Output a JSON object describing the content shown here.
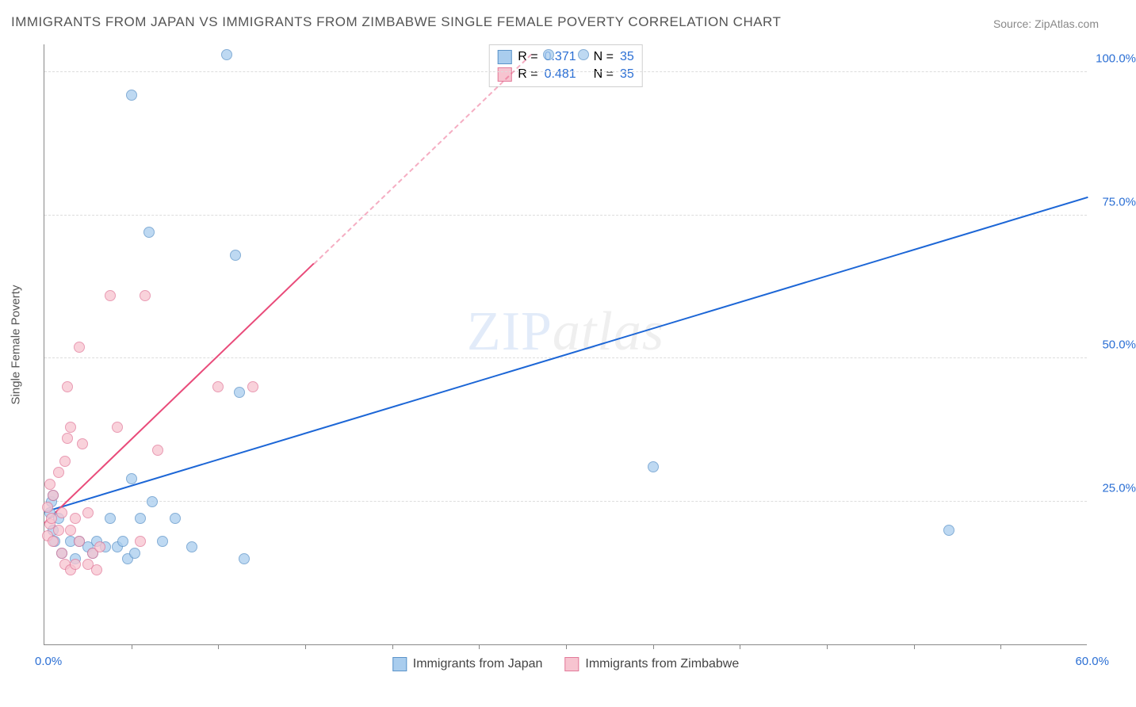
{
  "title": "IMMIGRANTS FROM JAPAN VS IMMIGRANTS FROM ZIMBABWE SINGLE FEMALE POVERTY CORRELATION CHART",
  "source_label": "Source: ZipAtlas.com",
  "y_axis_title": "Single Female Poverty",
  "watermark": {
    "part1": "ZIP",
    "part2": "atlas"
  },
  "chart": {
    "type": "scatter-with-trend",
    "background_color": "#ffffff",
    "grid_color": "#dddddd",
    "axis_color": "#888888",
    "x": {
      "min": 0,
      "max": 60,
      "origin_label": "0.0%",
      "max_label": "60.0%",
      "tick_positions": [
        5,
        10,
        15,
        20,
        25,
        30,
        35,
        40,
        45,
        50,
        55
      ],
      "label_color": "#2b6fd4"
    },
    "y": {
      "min": 0,
      "max": 105,
      "gridlines": [
        25,
        50,
        75,
        100
      ],
      "tick_labels": [
        "25.0%",
        "50.0%",
        "75.0%",
        "100.0%"
      ],
      "label_color": "#2b6fd4"
    },
    "point_radius": 7,
    "series": [
      {
        "name": "Immigrants from Japan",
        "fill": "#a9cdee",
        "stroke": "#5b93c9",
        "opacity": 0.75,
        "trend": {
          "color": "#1c66d6",
          "width": 2.5,
          "x1": 0,
          "y1": 23,
          "x2": 60,
          "y2": 78,
          "dash_after_x": null
        },
        "top_legend": {
          "R_label": "R = ",
          "R": "0.371",
          "N_label": "N = ",
          "N": "35"
        },
        "points": [
          [
            0.3,
            23
          ],
          [
            0.4,
            25
          ],
          [
            0.5,
            20
          ],
          [
            0.8,
            22
          ],
          [
            0.5,
            26
          ],
          [
            0.6,
            18
          ],
          [
            1.0,
            16
          ],
          [
            1.5,
            18
          ],
          [
            1.8,
            15
          ],
          [
            2.0,
            18
          ],
          [
            2.5,
            17
          ],
          [
            2.8,
            16
          ],
          [
            3.0,
            18
          ],
          [
            3.5,
            17
          ],
          [
            3.8,
            22
          ],
          [
            4.2,
            17
          ],
          [
            4.5,
            18
          ],
          [
            5.0,
            29
          ],
          [
            4.8,
            15
          ],
          [
            5.5,
            22
          ],
          [
            5.2,
            16
          ],
          [
            6.2,
            25
          ],
          [
            6.8,
            18
          ],
          [
            7.5,
            22
          ],
          [
            8.5,
            17
          ],
          [
            11.5,
            15
          ],
          [
            11.0,
            68
          ],
          [
            11.2,
            44
          ],
          [
            5.0,
            96
          ],
          [
            6.0,
            72
          ],
          [
            10.5,
            103
          ],
          [
            29.0,
            103
          ],
          [
            31.0,
            103
          ],
          [
            35.0,
            31
          ],
          [
            52.0,
            20
          ]
        ]
      },
      {
        "name": "Immigrants from Zimbabwe",
        "fill": "#f7c4d0",
        "stroke": "#e27a9a",
        "opacity": 0.75,
        "trend": {
          "color": "#e94b7a",
          "width": 2.5,
          "x1": 0,
          "y1": 21,
          "x2": 28,
          "y2": 103,
          "dash_after_x": 15.5
        },
        "top_legend": {
          "R_label": "R = ",
          "R": "0.481",
          "N_label": "N = ",
          "N": "35"
        },
        "points": [
          [
            0.2,
            19
          ],
          [
            0.3,
            21
          ],
          [
            0.2,
            24
          ],
          [
            0.4,
            22
          ],
          [
            0.3,
            28
          ],
          [
            0.5,
            26
          ],
          [
            0.5,
            18
          ],
          [
            0.8,
            30
          ],
          [
            0.8,
            20
          ],
          [
            1.0,
            23
          ],
          [
            1.0,
            16
          ],
          [
            1.2,
            14
          ],
          [
            1.2,
            32
          ],
          [
            1.3,
            36
          ],
          [
            1.3,
            45
          ],
          [
            1.5,
            20
          ],
          [
            1.5,
            13
          ],
          [
            1.5,
            38
          ],
          [
            1.8,
            22
          ],
          [
            1.8,
            14
          ],
          [
            2.0,
            18
          ],
          [
            2.0,
            52
          ],
          [
            2.2,
            35
          ],
          [
            2.5,
            23
          ],
          [
            2.5,
            14
          ],
          [
            2.8,
            16
          ],
          [
            3.0,
            13
          ],
          [
            3.2,
            17
          ],
          [
            3.8,
            61
          ],
          [
            4.2,
            38
          ],
          [
            5.5,
            18
          ],
          [
            5.8,
            61
          ],
          [
            6.5,
            34
          ],
          [
            10.0,
            45
          ],
          [
            12.0,
            45
          ]
        ]
      }
    ]
  }
}
